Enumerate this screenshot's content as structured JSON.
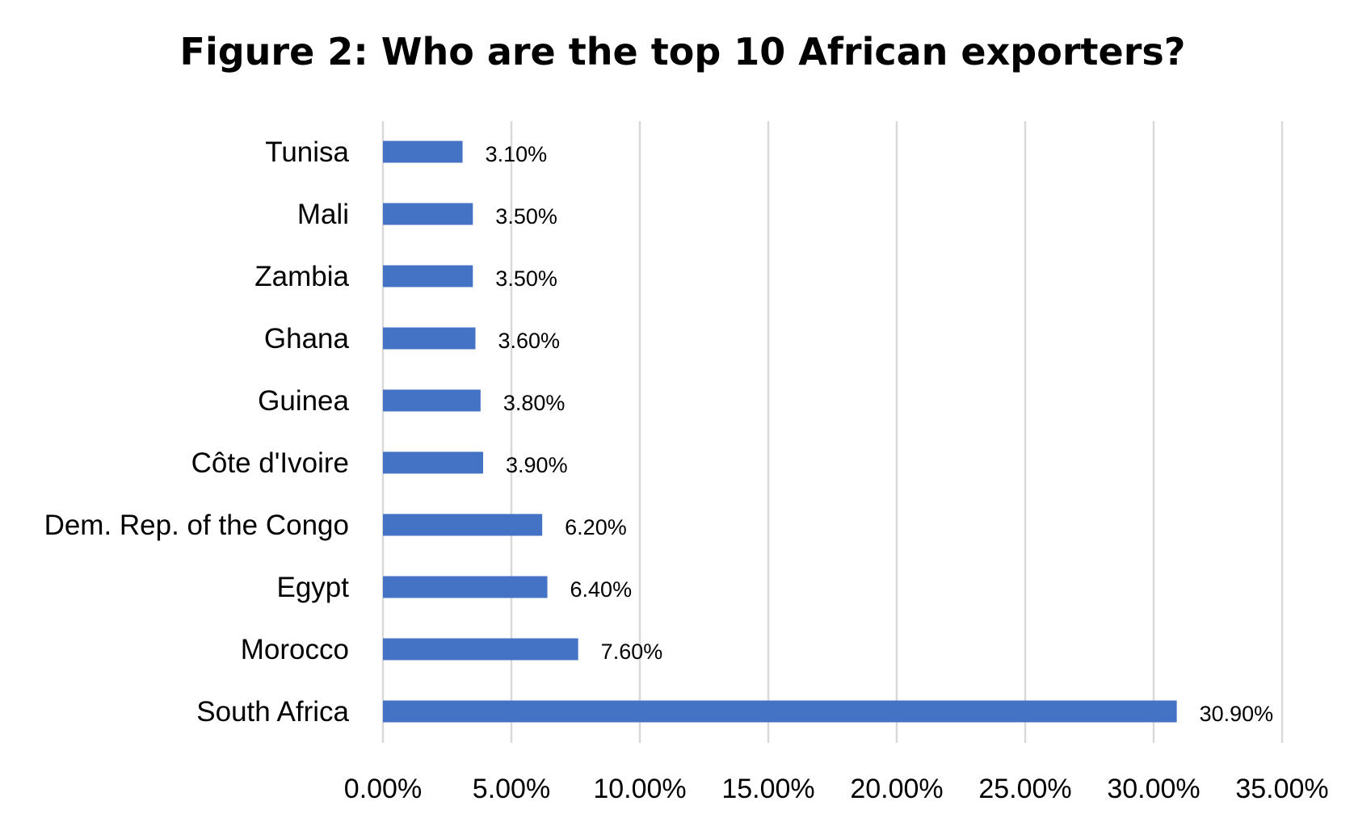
{
  "chart_data": {
    "type": "bar",
    "orientation": "horizontal",
    "title": "Figure 2: Who are the top 10 African exporters?",
    "xlabel": "",
    "ylabel": "",
    "categories": [
      "Tunisa",
      "Mali",
      "Zambia",
      "Ghana",
      "Guinea",
      "Côte d'Ivoire",
      "Dem. Rep. of the Congo",
      "Egypt",
      "Morocco",
      "South Africa"
    ],
    "values": [
      3.1,
      3.5,
      3.5,
      3.6,
      3.8,
      3.9,
      6.2,
      6.4,
      7.6,
      30.9
    ],
    "data_labels": [
      "3.10%",
      "3.50%",
      "3.50%",
      "3.60%",
      "3.80%",
      "3.90%",
      "6.20%",
      "6.40%",
      "7.60%",
      "30.90%"
    ],
    "xlim": [
      0,
      35
    ],
    "x_ticks": [
      0,
      5,
      10,
      15,
      20,
      25,
      30,
      35
    ],
    "x_tick_labels": [
      "0.00%",
      "5.00%",
      "10.00%",
      "15.00%",
      "20.00%",
      "25.00%",
      "30.00%",
      "35.00%"
    ],
    "grid": true,
    "legend": "none",
    "bar_color": "#4472c4",
    "grid_color": "#d9d9d9"
  }
}
